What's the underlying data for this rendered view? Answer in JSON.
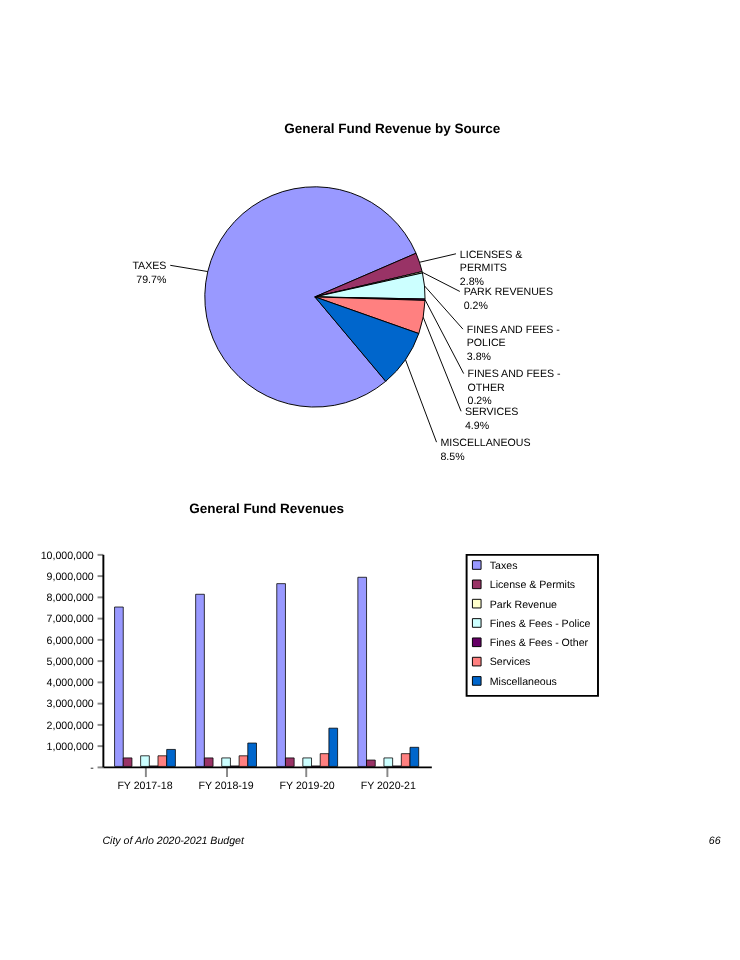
{
  "chart_data": [
    {
      "type": "pie",
      "title": "General Fund Revenue by Source",
      "categories": [
        "TAXES",
        "LICENSES & PERMITS",
        "PARK REVENUES",
        "FINES AND FEES - POLICE",
        "FINES AND FEES - OTHER",
        "SERVICES",
        "MISCELLANEOUS"
      ],
      "values": [
        79.7,
        2.8,
        0.2,
        3.8,
        0.2,
        4.9,
        8.5
      ],
      "value_labels": [
        "79.7%",
        "2.8%",
        "0.2%",
        "3.8%",
        "0.2%",
        "4.9%",
        "8.5%"
      ],
      "colors": [
        "#9999ff",
        "#993366",
        "#ffffcc",
        "#ccffff",
        "#660066",
        "#ff8080",
        "#0066cc"
      ],
      "legend": false
    },
    {
      "type": "bar",
      "title": "General Fund Revenues",
      "categories": [
        "FY 2017-18",
        "FY 2018-19",
        "FY 2019-20",
        "FY 2020-21"
      ],
      "series": [
        {
          "name": "Taxes",
          "color": "#9999ff",
          "values": [
            7500000,
            8100000,
            8600000,
            8900000
          ]
        },
        {
          "name": "License & Permits",
          "color": "#993366",
          "values": [
            400000,
            400000,
            400000,
            300000
          ]
        },
        {
          "name": "Park Revenue",
          "color": "#ffffcc",
          "values": [
            null,
            null,
            null,
            null
          ]
        },
        {
          "name": "Fines & Fees - Police",
          "color": "#ccffff",
          "values": [
            500000,
            400000,
            400000,
            400000
          ]
        },
        {
          "name": "Fines & Fees - Other",
          "color": "#660066",
          "values": [
            20000,
            20000,
            20000,
            20000
          ]
        },
        {
          "name": "Services",
          "color": "#ff8080",
          "values": [
            500000,
            500000,
            600000,
            600000
          ]
        },
        {
          "name": "Miscellaneous",
          "color": "#0066cc",
          "values": [
            800000,
            1100000,
            1800000,
            900000
          ]
        }
      ],
      "ylim": [
        0,
        10000000
      ],
      "yticks": [
        {
          "value": 0,
          "label": "-"
        },
        {
          "value": 1000000,
          "label": "1,000,000"
        },
        {
          "value": 2000000,
          "label": "2,000,000"
        },
        {
          "value": 3000000,
          "label": "3,000,000"
        },
        {
          "value": 4000000,
          "label": "4,000,000"
        },
        {
          "value": 5000000,
          "label": "5,000,000"
        },
        {
          "value": 6000000,
          "label": "6,000,000"
        },
        {
          "value": 7000000,
          "label": "7,000,000"
        },
        {
          "value": 8000000,
          "label": "8,000,000"
        },
        {
          "value": 9000000,
          "label": "9,000,000"
        },
        {
          "value": 10000000,
          "label": "10,000,000"
        }
      ],
      "grid": false,
      "legend": "right",
      "annotations": [
        "City of Arlo 2020-2021 Budget",
        "66"
      ]
    }
  ]
}
